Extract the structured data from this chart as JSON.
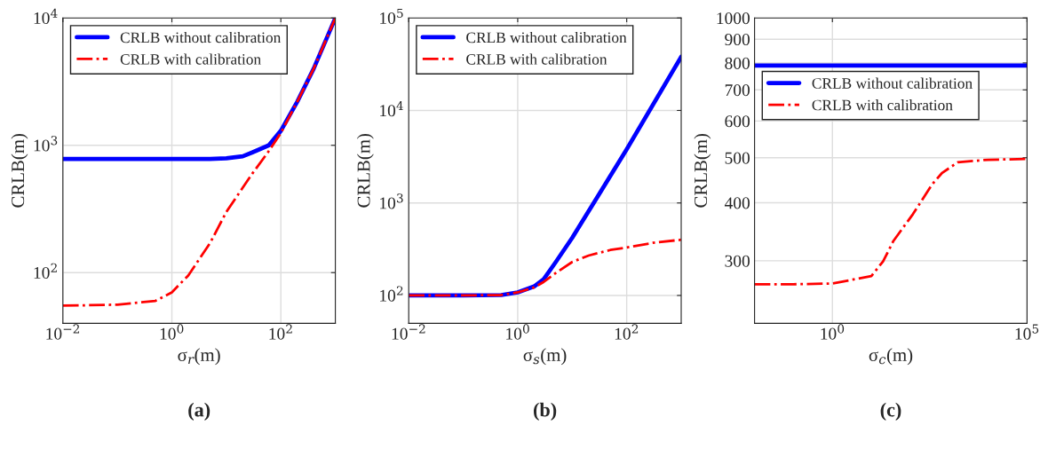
{
  "chart_data": [
    {
      "type": "line",
      "xlabel": "σ$_{r}$(m)",
      "ylabel": "CRLB(m)",
      "log": "xy",
      "grid": true,
      "legend": "top left",
      "annotations": [
        "(a)"
      ],
      "xlim": [
        0.01,
        1000
      ],
      "xticks": [
        {
          "value": 0.01,
          "label": "10$^{−2}$"
        },
        {
          "value": 1,
          "label": "10$^{0}$"
        },
        {
          "value": 100,
          "label": "10$^{2}$"
        }
      ],
      "ylim": [
        40,
        10000
      ],
      "yticks": [
        {
          "value": 100,
          "label": "10$^{2}$"
        },
        {
          "value": 1000,
          "label": "10$^{3}$"
        },
        {
          "value": 10000,
          "label": "10$^{4}$"
        }
      ],
      "series": [
        {
          "name": "CRLB without calibration",
          "color": "#0000ff",
          "line_style": "solid",
          "x": [
            0.01,
            0.1,
            1,
            5,
            10,
            20,
            30,
            60,
            100,
            200,
            400,
            1000
          ],
          "values": [
            780,
            780,
            780,
            782,
            790,
            820,
            880,
            1000,
            1300,
            2200,
            4000,
            10000
          ]
        },
        {
          "name": "CRLB with calibration",
          "color": "#ff0000",
          "line_style": "dashdot",
          "x": [
            0.01,
            0.1,
            0.5,
            1,
            2,
            5,
            10,
            30,
            60,
            100,
            200,
            400,
            1000
          ],
          "values": [
            55,
            56,
            60,
            70,
            95,
            170,
            300,
            600,
            900,
            1250,
            2200,
            4000,
            10000
          ]
        }
      ]
    },
    {
      "type": "line",
      "xlabel": "σ$_{s}$(m)",
      "ylabel": "CRLB(m)",
      "log": "xy",
      "grid": true,
      "legend": "top left",
      "annotations": [
        "(b)"
      ],
      "xlim": [
        0.01,
        1000
      ],
      "xticks": [
        {
          "value": 0.01,
          "label": "10$^{−2}$"
        },
        {
          "value": 1,
          "label": "10$^{0}$"
        },
        {
          "value": 100,
          "label": "10$^{2}$"
        }
      ],
      "ylim": [
        50,
        100000
      ],
      "yticks": [
        {
          "value": 100,
          "label": "10$^{2}$"
        },
        {
          "value": 1000,
          "label": "10$^{3}$"
        },
        {
          "value": 10000,
          "label": "10$^{4}$"
        },
        {
          "value": 100000,
          "label": "10$^{5}$"
        }
      ],
      "series": [
        {
          "name": "CRLB without calibration",
          "color": "#0000ff",
          "line_style": "solid",
          "x": [
            0.01,
            0.1,
            0.5,
            1,
            2,
            3,
            5,
            10,
            30,
            100,
            1000
          ],
          "values": [
            100,
            100,
            101,
            108,
            125,
            150,
            230,
            420,
            1200,
            3800,
            38000
          ]
        },
        {
          "name": "CRLB with calibration",
          "color": "#ff0000",
          "line_style": "dashdot",
          "x": [
            0.01,
            0.1,
            0.5,
            1,
            2,
            3,
            5,
            10,
            20,
            50,
            100,
            300,
            1000
          ],
          "values": [
            100,
            100,
            101,
            108,
            122,
            140,
            175,
            230,
            270,
            310,
            330,
            370,
            400
          ]
        }
      ]
    },
    {
      "type": "line",
      "xlabel": "σ$_{c}$(m)",
      "ylabel": "CRLB(m)",
      "log": "xy",
      "grid": true,
      "legend": "top left",
      "annotations": [
        "(c)"
      ],
      "xlim": [
        0.01,
        100000
      ],
      "xticks": [
        {
          "value": 1,
          "label": "10$^{0}$"
        },
        {
          "value": 100000,
          "label": "10$^{5}$"
        }
      ],
      "ylim": [
        220,
        1000
      ],
      "yticks": [
        300,
        400,
        500,
        600,
        700,
        800,
        900,
        1000
      ],
      "series": [
        {
          "name": "CRLB without calibration",
          "color": "#0000ff",
          "line_style": "solid",
          "x": [
            0.01,
            100000
          ],
          "values": [
            790,
            790
          ]
        },
        {
          "name": "CRLB with calibration",
          "color": "#ff0000",
          "line_style": "dashdot",
          "x": [
            0.01,
            0.1,
            1,
            10,
            20,
            37,
            117,
            363,
            646,
            1660,
            10000,
            100000
          ],
          "values": [
            267,
            267,
            268,
            278,
            299,
            331,
            378,
            438,
            463,
            489,
            495,
            497
          ]
        }
      ]
    }
  ]
}
